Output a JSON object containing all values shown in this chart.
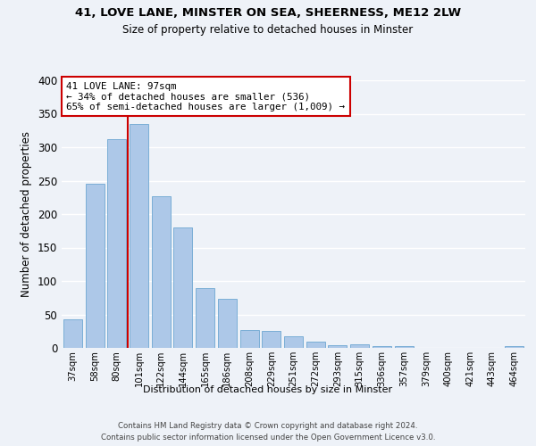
{
  "title1": "41, LOVE LANE, MINSTER ON SEA, SHEERNESS, ME12 2LW",
  "title2": "Size of property relative to detached houses in Minster",
  "xlabel": "Distribution of detached houses by size in Minster",
  "ylabel": "Number of detached properties",
  "categories": [
    "37sqm",
    "58sqm",
    "80sqm",
    "101sqm",
    "122sqm",
    "144sqm",
    "165sqm",
    "186sqm",
    "208sqm",
    "229sqm",
    "251sqm",
    "272sqm",
    "293sqm",
    "315sqm",
    "336sqm",
    "357sqm",
    "379sqm",
    "400sqm",
    "421sqm",
    "443sqm",
    "464sqm"
  ],
  "values": [
    43,
    245,
    312,
    335,
    227,
    180,
    90,
    73,
    27,
    26,
    17,
    10,
    4,
    5,
    3,
    3,
    0,
    0,
    0,
    0,
    3
  ],
  "bar_color": "#adc8e8",
  "bar_edge_color": "#7aaed6",
  "marker_label": "41 LOVE LANE: 97sqm",
  "annotation_line1": "← 34% of detached houses are smaller (536)",
  "annotation_line2": "65% of semi-detached houses are larger (1,009) →",
  "vline_color": "#cc0000",
  "vline_x": 2.5,
  "annotation_box_color": "#ffffff",
  "annotation_box_edge": "#cc0000",
  "footer1": "Contains HM Land Registry data © Crown copyright and database right 2024.",
  "footer2": "Contains public sector information licensed under the Open Government Licence v3.0.",
  "ylim": [
    0,
    400
  ],
  "yticks": [
    0,
    50,
    100,
    150,
    200,
    250,
    300,
    350,
    400
  ],
  "background_color": "#eef2f8",
  "grid_color": "#ffffff"
}
